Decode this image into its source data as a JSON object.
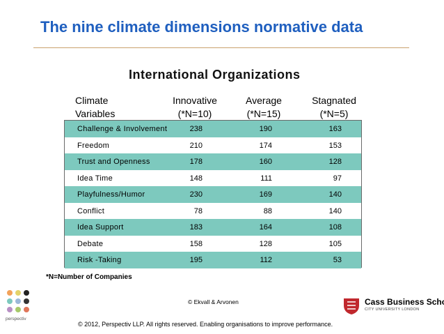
{
  "title": "The nine climate dimensions normative data",
  "subtitle": "International Organizations",
  "headers": {
    "variable_line1": "Climate",
    "variable_line2": "Variables",
    "col1_line1": "Innovative",
    "col1_line2": "(*N=10)",
    "col2_line1": "Average",
    "col2_line2": "(*N=15)",
    "col3_line1": "Stagnated",
    "col3_line2": "(*N=5)"
  },
  "rows": [
    {
      "label": "Challenge & Involvement",
      "innovative": "238",
      "average": "190",
      "stagnated": "163"
    },
    {
      "label": "Freedom",
      "innovative": "210",
      "average": "174",
      "stagnated": "153"
    },
    {
      "label": "Trust and Openness",
      "innovative": "178",
      "average": "160",
      "stagnated": "128"
    },
    {
      "label": "Idea Time",
      "innovative": "148",
      "average": "111",
      "stagnated": "97"
    },
    {
      "label": "Playfulness/Humor",
      "innovative": "230",
      "average": "169",
      "stagnated": "140"
    },
    {
      "label": "Conflict",
      "innovative": "78",
      "average": "88",
      "stagnated": "140"
    },
    {
      "label": "Idea Support",
      "innovative": "183",
      "average": "164",
      "stagnated": "108"
    },
    {
      "label": "Debate",
      "innovative": "158",
      "average": "128",
      "stagnated": "105"
    },
    {
      "label": "Risk -Taking",
      "innovative": "195",
      "average": "112",
      "stagnated": "53"
    }
  ],
  "footnote": "*N=Number of Companies",
  "credit": "© Ekvall & Arvonen",
  "copyright": "© 2012, Perspectiv LLP. All rights reserved. Enabling organisations to improve performance.",
  "logo_left_text": "perspectiv",
  "logo_right_school": "Cass Business School",
  "logo_right_university": "CITY UNIVERSITY LONDON",
  "colors": {
    "title": "#1F5FBF",
    "teal_row": "#7DC9BE",
    "rule": "#C9A26E"
  }
}
